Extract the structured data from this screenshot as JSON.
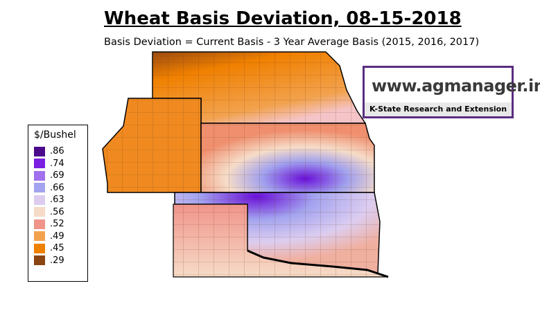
{
  "header": {
    "title": "Wheat Basis Deviation, 08-15-2018",
    "subtitle": "Basis Deviation = Current Basis - 3 Year Average Basis (2015, 2016, 2017)"
  },
  "logo": {
    "url": "www.agmanager.info",
    "org": "K-State Research and Extension"
  },
  "legend": {
    "title": "$/Bushel",
    "items": [
      {
        "label": ".86",
        "color": "#4b0a8c"
      },
      {
        "label": ".74",
        "color": "#7a1fe0"
      },
      {
        "label": ".69",
        "color": "#a070ee"
      },
      {
        "label": ".66",
        "color": "#a3a3ef"
      },
      {
        "label": ".63",
        "color": "#dccdf0"
      },
      {
        "label": ".56",
        "color": "#f6dcc8"
      },
      {
        "label": ".52",
        "color": "#f0948a"
      },
      {
        "label": ".49",
        "color": "#f2a24e"
      },
      {
        "label": ".45",
        "color": "#f08000"
      },
      {
        "label": ".29",
        "color": "#8b4513"
      }
    ]
  }
}
